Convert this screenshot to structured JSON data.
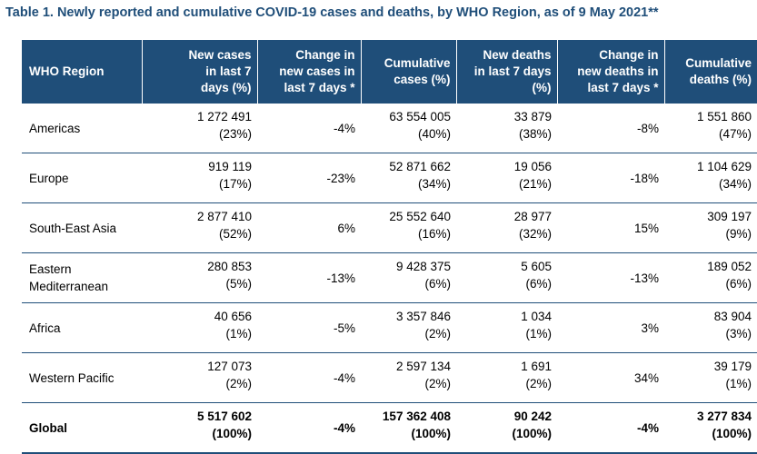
{
  "caption": "Table 1. Newly reported and cumulative COVID-19 cases and deaths, by WHO Region, as of 9 May 2021**",
  "headers": {
    "region": "WHO Region",
    "new_cases": [
      "New cases",
      "in last 7",
      "days (%)"
    ],
    "change_cases": [
      "Change in",
      "new cases in",
      "last 7 days *"
    ],
    "cum_cases": [
      "Cumulative",
      "cases (%)"
    ],
    "new_deaths": [
      "New deaths",
      "in last 7 days",
      "(%)"
    ],
    "change_deaths": [
      "Change in",
      "new deaths in",
      "last 7 days *"
    ],
    "cum_deaths": [
      "Cumulative",
      "deaths (%)"
    ]
  },
  "rows": [
    {
      "region": [
        "Americas"
      ],
      "new_cases": "1 272 491",
      "new_cases_pct": "(23%)",
      "change_cases": "-4%",
      "cum_cases": "63 554 005",
      "cum_cases_pct": "(40%)",
      "new_deaths": "33 879",
      "new_deaths_pct": "(38%)",
      "change_deaths": "-8%",
      "cum_deaths": "1 551 860",
      "cum_deaths_pct": "(47%)"
    },
    {
      "region": [
        "Europe"
      ],
      "new_cases": "919 119",
      "new_cases_pct": "(17%)",
      "change_cases": "-23%",
      "cum_cases": "52 871 662",
      "cum_cases_pct": "(34%)",
      "new_deaths": "19 056",
      "new_deaths_pct": "(21%)",
      "change_deaths": "-18%",
      "cum_deaths": "1 104 629",
      "cum_deaths_pct": "(34%)"
    },
    {
      "region": [
        "South-East Asia"
      ],
      "new_cases": "2 877 410",
      "new_cases_pct": "(52%)",
      "change_cases": "6%",
      "cum_cases": "25 552 640",
      "cum_cases_pct": "(16%)",
      "new_deaths": "28 977",
      "new_deaths_pct": "(32%)",
      "change_deaths": "15%",
      "cum_deaths": "309 197",
      "cum_deaths_pct": "(9%)"
    },
    {
      "region": [
        "Eastern",
        "Mediterranean"
      ],
      "new_cases": "280 853",
      "new_cases_pct": "(5%)",
      "change_cases": "-13%",
      "cum_cases": "9 428 375",
      "cum_cases_pct": "(6%)",
      "new_deaths": "5 605",
      "new_deaths_pct": "(6%)",
      "change_deaths": "-13%",
      "cum_deaths": "189 052",
      "cum_deaths_pct": "(6%)"
    },
    {
      "region": [
        "Africa"
      ],
      "new_cases": "40 656",
      "new_cases_pct": "(1%)",
      "change_cases": "-5%",
      "cum_cases": "3 357 846",
      "cum_cases_pct": "(2%)",
      "new_deaths": "1 034",
      "new_deaths_pct": "(1%)",
      "change_deaths": "3%",
      "cum_deaths": "83 904",
      "cum_deaths_pct": "(3%)"
    },
    {
      "region": [
        "Western Pacific"
      ],
      "new_cases": "127 073",
      "new_cases_pct": "(2%)",
      "change_cases": "-4%",
      "cum_cases": "2 597 134",
      "cum_cases_pct": "(2%)",
      "new_deaths": "1 691",
      "new_deaths_pct": "(2%)",
      "change_deaths": "34%",
      "cum_deaths": "39 179",
      "cum_deaths_pct": "(1%)"
    },
    {
      "region": [
        "Global"
      ],
      "new_cases": "5 517 602",
      "new_cases_pct": "(100%)",
      "change_cases": "-4%",
      "cum_cases": "157 362 408",
      "cum_cases_pct": "(100%)",
      "new_deaths": "90 242",
      "new_deaths_pct": "(100%)",
      "change_deaths": "-4%",
      "cum_deaths": "3 277 834",
      "cum_deaths_pct": "(100%)"
    }
  ],
  "colors": {
    "header_bg": "#1f4e79",
    "caption": "#1f4e79",
    "rule": "#1f4e79"
  }
}
